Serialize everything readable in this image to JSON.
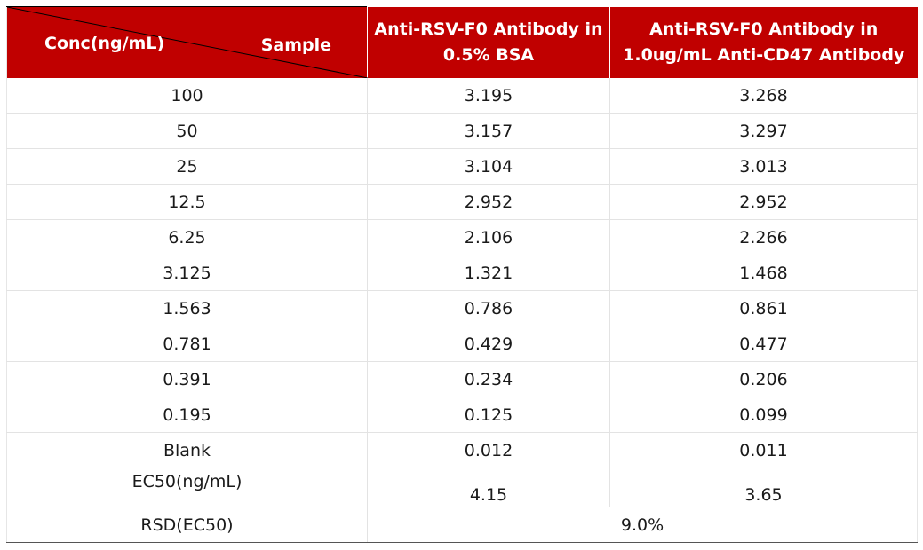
{
  "header": {
    "corner_left": "Conc(ng/mL)",
    "corner_right": "Sample",
    "col2_line1": "Anti-RSV-F0 Antibody in",
    "col2_line2": "0.5% BSA",
    "col3_line1": "Anti-RSV-F0 Antibody in",
    "col3_line2": "1.0ug/mL Anti-CD47 Antibody"
  },
  "rows": [
    {
      "conc": "100",
      "bsa": "3.195",
      "cd47": "3.268"
    },
    {
      "conc": "50",
      "bsa": "3.157",
      "cd47": "3.297"
    },
    {
      "conc": "25",
      "bsa": "3.104",
      "cd47": "3.013"
    },
    {
      "conc": "12.5",
      "bsa": "2.952",
      "cd47": "2.952"
    },
    {
      "conc": "6.25",
      "bsa": "2.106",
      "cd47": "2.266"
    },
    {
      "conc": "3.125",
      "bsa": "1.321",
      "cd47": "1.468"
    },
    {
      "conc": "1.563",
      "bsa": "0.786",
      "cd47": "0.861"
    },
    {
      "conc": "0.781",
      "bsa": "0.429",
      "cd47": "0.477"
    },
    {
      "conc": "0.391",
      "bsa": "0.234",
      "cd47": "0.206"
    },
    {
      "conc": "0.195",
      "bsa": "0.125",
      "cd47": "0.099"
    },
    {
      "conc": "Blank",
      "bsa": "0.012",
      "cd47": "0.011"
    }
  ],
  "ec50": {
    "label": "EC50(ng/mL)",
    "bsa": "4.15",
    "cd47": "3.65"
  },
  "rsd": {
    "label": "RSD(EC50)",
    "value": "9.0%"
  },
  "colors": {
    "header_bg": "#c00000",
    "header_text": "#ffffff"
  }
}
